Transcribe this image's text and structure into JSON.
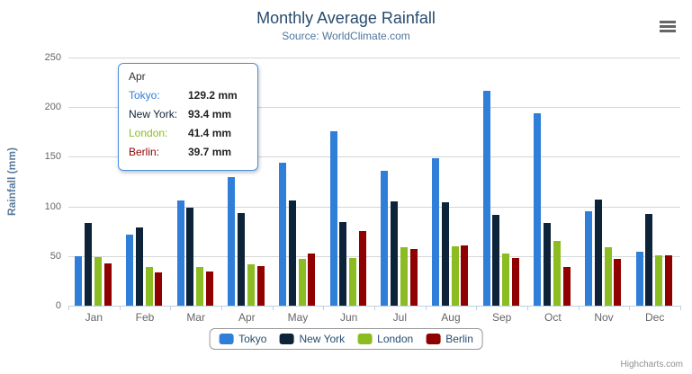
{
  "header": {
    "title": "Monthly Average Rainfall",
    "subtitle": "Source: WorldClimate.com"
  },
  "chart_data": {
    "type": "bar",
    "title": "Monthly Average Rainfall",
    "subtitle": "Source: WorldClimate.com",
    "xlabel": "",
    "ylabel": "Rainfall (mm)",
    "ylim": [
      0,
      250
    ],
    "ytick_step": 50,
    "grid": true,
    "legend_position": "bottom",
    "categories": [
      "Jan",
      "Feb",
      "Mar",
      "Apr",
      "May",
      "Jun",
      "Jul",
      "Aug",
      "Sep",
      "Oct",
      "Nov",
      "Dec"
    ],
    "series": [
      {
        "name": "Tokyo",
        "color": "#2f7ed8",
        "values": [
          49.9,
          71.5,
          106.4,
          129.2,
          144.0,
          176.0,
          135.6,
          148.5,
          216.4,
          194.1,
          95.6,
          54.4
        ]
      },
      {
        "name": "New York",
        "color": "#0d233a",
        "values": [
          83.6,
          78.8,
          98.5,
          93.4,
          106.0,
          84.5,
          105.0,
          104.3,
          91.2,
          83.5,
          106.6,
          92.3
        ]
      },
      {
        "name": "London",
        "color": "#8bbc21",
        "values": [
          48.9,
          38.8,
          39.3,
          41.4,
          47.0,
          48.3,
          59.0,
          59.6,
          52.4,
          65.2,
          59.3,
          51.2
        ]
      },
      {
        "name": "Berlin",
        "color": "#910000",
        "values": [
          42.4,
          33.2,
          34.5,
          39.7,
          52.6,
          75.5,
          57.4,
          60.4,
          47.6,
          39.1,
          46.8,
          51.1
        ]
      }
    ]
  },
  "tooltip": {
    "header": "Apr",
    "rows": [
      {
        "series": "Tokyo",
        "label": "Tokyo:",
        "value": "129.2 mm"
      },
      {
        "series": "New York",
        "label": "New York:",
        "value": "93.4 mm"
      },
      {
        "series": "London",
        "label": "London:",
        "value": "41.4 mm"
      },
      {
        "series": "Berlin",
        "label": "Berlin:",
        "value": "39.7 mm"
      }
    ]
  },
  "legend": {
    "items": [
      "Tokyo",
      "New York",
      "London",
      "Berlin"
    ]
  },
  "credit": "Highcharts.com",
  "colors": {
    "title": "#274b6d",
    "subtitle": "#4d759e",
    "axis_labels": "#666666",
    "gridline": "#d6d6d6",
    "axis_line": "#c0d0e0",
    "tooltip_border": "#4a90e2"
  }
}
